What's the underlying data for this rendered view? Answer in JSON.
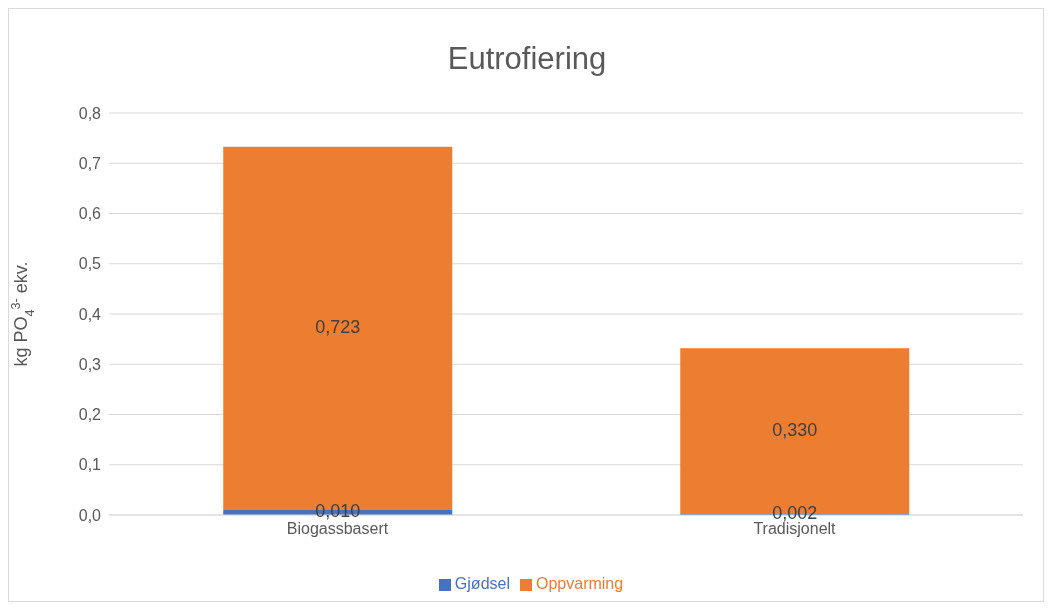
{
  "chart_data": {
    "type": "bar",
    "title": "Eutrofiering",
    "ylabel": "kg PO$_{4}$$^{3-}$ ekv.",
    "categories": [
      "Biogassbasert",
      "Tradisjonelt"
    ],
    "stacked": true,
    "series": [
      {
        "name": "Gjødsel",
        "color": "#4472c4",
        "values": [
          0.01,
          0.002
        ],
        "value_labels": [
          "0,010",
          "0,002"
        ]
      },
      {
        "name": "Oppvarming",
        "color": "#ed7d31",
        "values": [
          0.723,
          0.33
        ],
        "value_labels": [
          "0,723",
          "0,330"
        ]
      }
    ],
    "ylim": [
      0,
      0.8
    ],
    "yticks": [
      {
        "value": 0,
        "label": "0,0"
      },
      {
        "value": 0.1,
        "label": "0,1"
      },
      {
        "value": 0.2,
        "label": "0,2"
      },
      {
        "value": 0.3,
        "label": "0,3"
      },
      {
        "value": 0.4,
        "label": "0,4"
      },
      {
        "value": 0.5,
        "label": "0,5"
      },
      {
        "value": 0.6,
        "label": "0,6"
      },
      {
        "value": 0.7,
        "label": "0,7"
      },
      {
        "value": 0.8,
        "label": "0,8"
      }
    ],
    "grid": "y",
    "legend": "bottom"
  }
}
